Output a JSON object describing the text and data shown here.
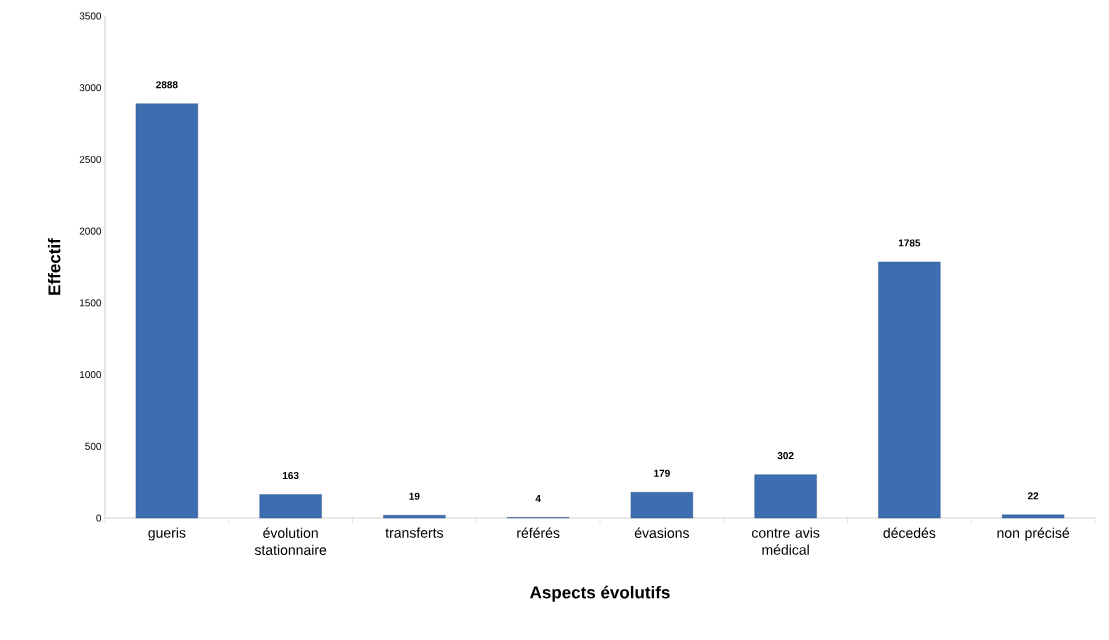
{
  "chart_data": {
    "type": "bar",
    "xlabel": "Aspects évolutifs",
    "ylabel": "Effectif",
    "categories": [
      "gueris",
      "évolution stationnaire",
      "transferts",
      "référés",
      "évasions",
      "contre avis médical",
      "décedés",
      "non précisé"
    ],
    "values": [
      2888,
      163,
      19,
      4,
      179,
      302,
      1785,
      22
    ],
    "value_labels": [
      "2888",
      "163",
      "19",
      "4",
      "179",
      "302",
      "1785",
      "22"
    ],
    "color": "#3d6eb0",
    "ylim": [
      0,
      3500
    ],
    "yticks": [
      0,
      500,
      1000,
      1500,
      2000,
      2500,
      3000,
      3500
    ],
    "grid": false
  }
}
